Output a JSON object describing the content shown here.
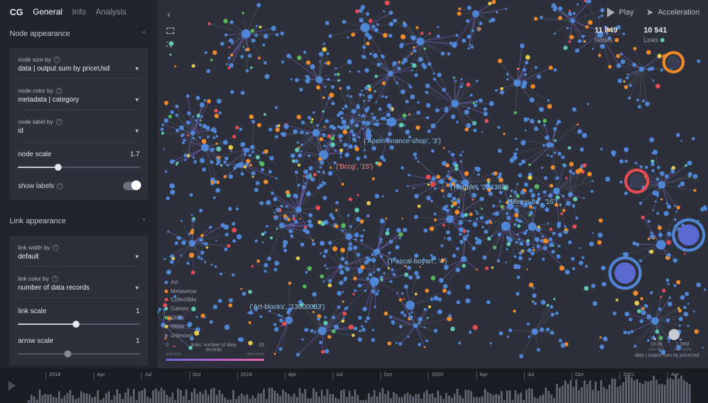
{
  "sidebar": {
    "brand": "CG",
    "tabs": [
      "General",
      "Info",
      "Analysis"
    ],
    "node_section": {
      "title": "Node appearance",
      "size_by": {
        "label": "node size by",
        "value": "data | output sum by priceUsd"
      },
      "color_by": {
        "label": "node color by",
        "value": "metadata | category"
      },
      "label_by": {
        "label": "node label by",
        "value": "id"
      },
      "scale": {
        "label": "node scale",
        "value": "1.7",
        "fraction": 0.33
      },
      "show_labels": {
        "label": "show labels",
        "on": true
      }
    },
    "link_section": {
      "title": "Link appearance",
      "width_by": {
        "label": "link width by",
        "value": "default"
      },
      "color_by": {
        "label": "link color by",
        "value": "number of data records"
      },
      "link_scale": {
        "label": "link scale",
        "value": "1",
        "fraction": 0.48
      },
      "arrow_scale": {
        "label": "arrow scale",
        "value": "1",
        "fraction": 0.41
      }
    }
  },
  "controls": {
    "play": "Play",
    "acceleration": "Acceleration"
  },
  "stats": {
    "nodes": {
      "value": "11 849",
      "label": "Nodes"
    },
    "links": {
      "value": "10 541",
      "label": "Links"
    }
  },
  "labels": [
    {
      "text": "('Apein-finance-shop', '3')",
      "color": "blue"
    },
    {
      "text": "('Bccg', '15')",
      "color": "red"
    },
    {
      "text": "('Rarible', '224365')",
      "color": "blue"
    },
    {
      "text": "('Meme-ltd', '16')",
      "color": "blue"
    },
    {
      "text": "('Pascal-boyart', '4')",
      "color": "blue"
    },
    {
      "text": "('Art-blocks', '13000083')",
      "color": "blue"
    }
  ],
  "legend": [
    {
      "name": "Art",
      "color": "#4f86d6"
    },
    {
      "name": "Metaverse",
      "color": "#f08a2a"
    },
    {
      "name": "Collectible",
      "color": "#e64c55"
    },
    {
      "name": "Games",
      "color": "#5fc9b0"
    },
    {
      "name": "Utility",
      "color": "#55b95a"
    },
    {
      "name": "Other",
      "color": "#e7c94a"
    },
    {
      "name": "unknown",
      "color": "#6b6e7a"
    }
  ],
  "link_legend": {
    "min": "0",
    "min_note": "and less",
    "title": "links: number of data records",
    "max": "33",
    "max_note": "and more"
  },
  "size_legend": {
    "min": "10.0k",
    "min_note": "and less",
    "max": "1.39M",
    "max_note": "and more",
    "caption": "data | output sum by priceUsd"
  },
  "timeline": {
    "ticks": [
      "2018",
      "Apr",
      "Jul",
      "Oct",
      "2019",
      "Apr",
      "Jul",
      "Oct",
      "2020",
      "Apr",
      "Jul",
      "Oct",
      "2021",
      "Apr"
    ]
  }
}
